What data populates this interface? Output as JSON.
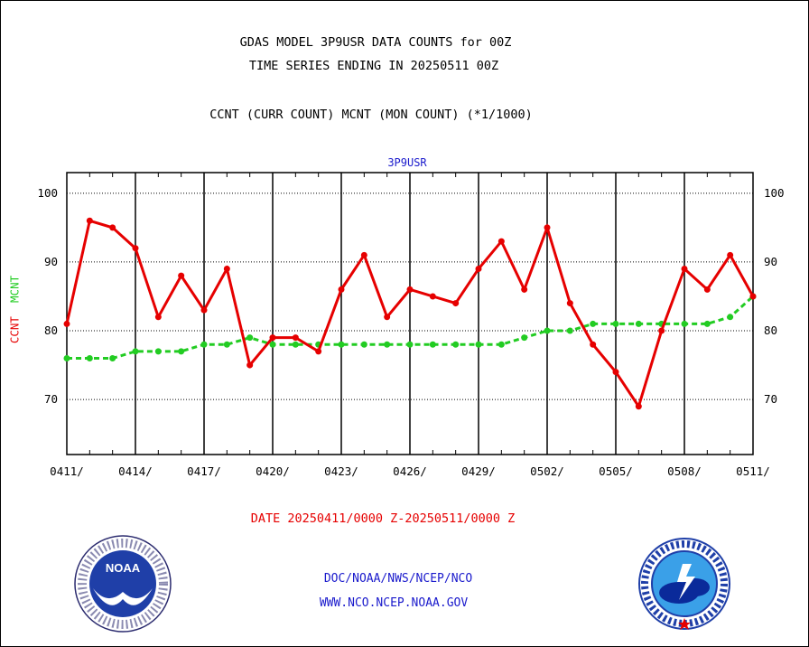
{
  "chart_data": {
    "type": "line",
    "title": "GDAS MODEL 3P9USR DATA COUNTS for 00Z",
    "subtitle": "TIME SERIES ENDING IN 20250511 00Z",
    "description_line": "CCNT (CURR COUNT) MCNT (MON COUNT) (*1/1000)",
    "series_title": "3P9USR",
    "ylabel_parts": [
      "CCNT",
      "MCNT"
    ],
    "xlabel": "DATE 20250411/0000 Z-20250511/0000 Z",
    "x_tick_labels": [
      "0411/",
      "0414/",
      "0417/",
      "0420/",
      "0423/",
      "0426/",
      "0429/",
      "0502/",
      "0505/",
      "0508/",
      "0511/"
    ],
    "y_ticks": [
      70,
      80,
      90,
      100
    ],
    "ylim": [
      62,
      103
    ],
    "xlim": [
      0,
      30
    ],
    "grid": true,
    "series": [
      {
        "name": "CCNT",
        "color": "#e60000",
        "style": "solid",
        "values": [
          81,
          96,
          95,
          92,
          82,
          88,
          83,
          89,
          75,
          79,
          79,
          77,
          86,
          91,
          82,
          86,
          85,
          84,
          89,
          93,
          86,
          95,
          84,
          78,
          74,
          69,
          80,
          89,
          86,
          91,
          85
        ]
      },
      {
        "name": "MCNT",
        "color": "#22cc22",
        "style": "dashed",
        "values": [
          76,
          76,
          76,
          77,
          77,
          77,
          78,
          78,
          79,
          78,
          78,
          78,
          78,
          78,
          78,
          78,
          78,
          78,
          78,
          78,
          79,
          80,
          80,
          81,
          81,
          81,
          81,
          81,
          81,
          82,
          85
        ]
      }
    ]
  },
  "footer": {
    "line1": "DOC/NOAA/NWS/NCEP/NCO",
    "line2": "WWW.NCO.NCEP.NOAA.GOV"
  },
  "logos": {
    "noaa": {
      "icon": "noaa-logo",
      "text": "NOAA"
    },
    "nws": {
      "icon": "nws-logo",
      "text": "NATIONAL WEATHER SERVICE"
    }
  }
}
